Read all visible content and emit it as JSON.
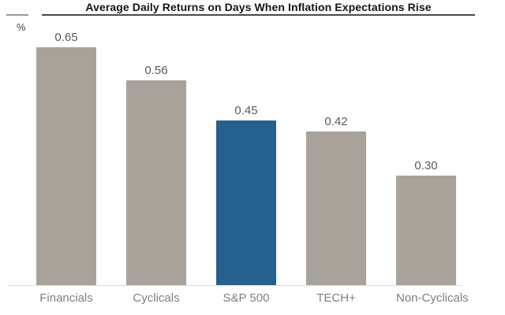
{
  "header": {
    "title": "Average Daily Returns on Days When Inflation Expectations Rise",
    "y_axis_unit": "%"
  },
  "chart_data": {
    "type": "bar",
    "title": "Average Daily Returns on Days When Inflation Expectations Rise",
    "xlabel": "",
    "ylabel": "%",
    "categories": [
      "Financials",
      "Cyclicals",
      "S&P 500",
      "TECH+",
      "Non-Cyclicals"
    ],
    "values": [
      0.65,
      0.56,
      0.45,
      0.42,
      0.3
    ],
    "data_labels": [
      "0.65",
      "0.56",
      "0.45",
      "0.42",
      "0.30"
    ],
    "ylim": [
      0,
      0.78
    ],
    "grid": false,
    "legend": false,
    "colors": {
      "default_bar": "#a8a29a",
      "highlight_bar": "#26608e",
      "highlight_category": "S&P 500",
      "value_label": "#595959",
      "category_label": "#7f7f7f",
      "axis_line": "#d9d9d9",
      "title_underline": "#4a4a4a"
    },
    "bar_colors": [
      "#a8a29a",
      "#a8a29a",
      "#26608e",
      "#a8a29a",
      "#a8a29a"
    ]
  }
}
